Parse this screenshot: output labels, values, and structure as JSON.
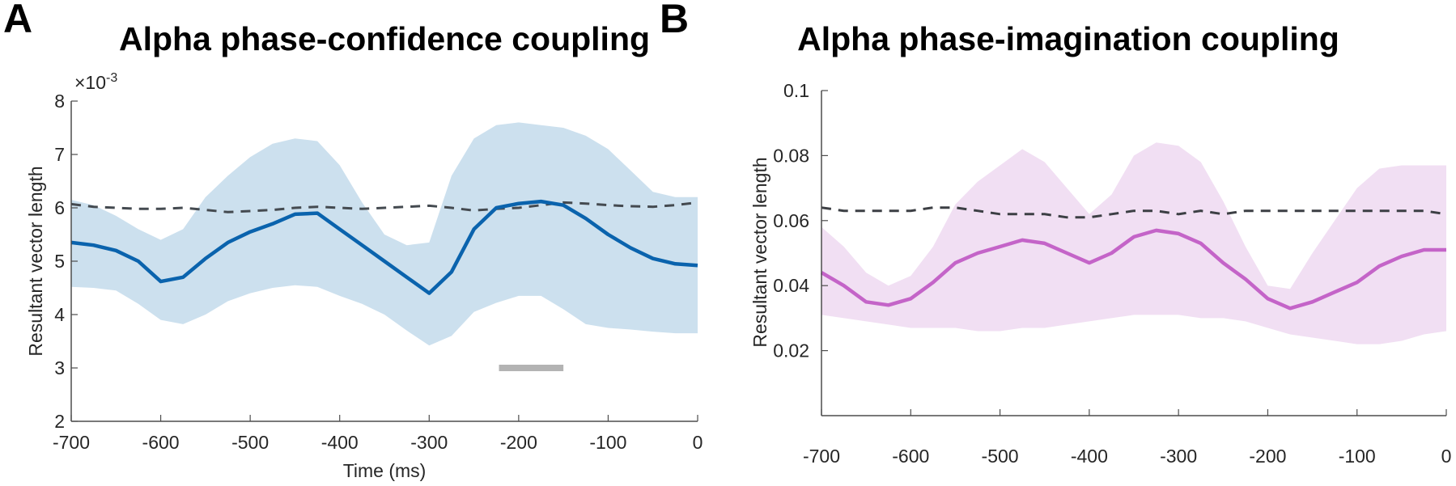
{
  "chart_data": [
    {
      "panel": "A",
      "type": "line",
      "title": "Alpha phase-confidence coupling",
      "xlabel": "Time (ms)",
      "ylabel": "Resultant vector length",
      "y_exponent_label": "×10",
      "y_exponent_power": "-3",
      "xlim": [
        -700,
        0
      ],
      "ylim": [
        2,
        8
      ],
      "xticks": [
        -700,
        -600,
        -500,
        -400,
        -300,
        -200,
        -100,
        0
      ],
      "xtick_labels": [
        "-700",
        "-600",
        "-500",
        "-400",
        "-300",
        "-200",
        "-100",
        "0"
      ],
      "yticks": [
        2,
        3,
        4,
        5,
        6,
        7,
        8
      ],
      "ytick_labels": [
        "2",
        "3",
        "4",
        "5",
        "6",
        "7",
        "8"
      ],
      "grid": false,
      "colors": {
        "mean": "#0a63ad",
        "band": "#cce0ee",
        "baseline": "#444a50",
        "significance": "#b3b3b3"
      },
      "x": [
        -700,
        -675,
        -650,
        -625,
        -600,
        -575,
        -550,
        -525,
        -500,
        -475,
        -450,
        -425,
        -400,
        -375,
        -350,
        -325,
        -300,
        -275,
        -250,
        -225,
        -200,
        -175,
        -150,
        -125,
        -100,
        -75,
        -50,
        -25,
        0
      ],
      "series": [
        {
          "name": "mean",
          "style": "solid",
          "values": [
            5.35,
            5.3,
            5.2,
            5.0,
            4.62,
            4.7,
            5.05,
            5.35,
            5.55,
            5.7,
            5.88,
            5.9,
            5.6,
            5.3,
            5.0,
            4.7,
            4.4,
            4.8,
            5.6,
            6.0,
            6.08,
            6.12,
            6.05,
            5.8,
            5.5,
            5.25,
            5.05,
            4.95,
            4.92
          ]
        },
        {
          "name": "upper",
          "style": "band",
          "values": [
            6.15,
            6.05,
            5.85,
            5.6,
            5.4,
            5.6,
            6.2,
            6.6,
            6.95,
            7.2,
            7.3,
            7.25,
            6.8,
            6.1,
            5.5,
            5.3,
            5.35,
            6.6,
            7.3,
            7.55,
            7.6,
            7.55,
            7.5,
            7.35,
            7.1,
            6.7,
            6.3,
            6.2,
            6.2
          ]
        },
        {
          "name": "lower",
          "style": "band",
          "values": [
            4.52,
            4.5,
            4.45,
            4.2,
            3.9,
            3.82,
            4.0,
            4.25,
            4.4,
            4.5,
            4.55,
            4.52,
            4.35,
            4.2,
            4.0,
            3.7,
            3.42,
            3.6,
            4.05,
            4.22,
            4.35,
            4.35,
            4.1,
            3.82,
            3.75,
            3.72,
            3.68,
            3.65,
            3.65
          ]
        },
        {
          "name": "baseline",
          "style": "dashed",
          "values": [
            6.07,
            6.02,
            6.0,
            5.98,
            5.98,
            6.0,
            5.96,
            5.92,
            5.94,
            5.96,
            6.0,
            6.02,
            6.0,
            5.98,
            6.0,
            6.02,
            6.04,
            6.0,
            5.95,
            5.98,
            6.0,
            6.05,
            6.1,
            6.08,
            6.05,
            6.03,
            6.02,
            6.05,
            6.1
          ]
        }
      ],
      "significance_bar": {
        "x_start": -222,
        "x_end": -150,
        "y": 3.0
      }
    },
    {
      "panel": "B",
      "type": "line",
      "title": "Alpha phase-imagination coupling",
      "xlabel": "",
      "ylabel": "Resultant vector length",
      "xlim": [
        -700,
        0
      ],
      "ylim": [
        0,
        0.1
      ],
      "xticks": [
        -700,
        -600,
        -500,
        -400,
        -300,
        -200,
        -100,
        0
      ],
      "xtick_labels": [
        "-700",
        "-600",
        "-500",
        "-400",
        "-300",
        "-200",
        "-100",
        "0"
      ],
      "yticks": [
        0.02,
        0.04,
        0.06,
        0.08,
        0.1
      ],
      "ytick_labels": [
        "0.02",
        "0.04",
        "0.06",
        "0.08",
        "0.1"
      ],
      "grid": false,
      "colors": {
        "mean": "#c464c8",
        "band": "#f1dff3",
        "baseline": "#3c3f44"
      },
      "x": [
        -700,
        -675,
        -650,
        -625,
        -600,
        -575,
        -550,
        -525,
        -500,
        -475,
        -450,
        -425,
        -400,
        -375,
        -350,
        -325,
        -300,
        -275,
        -250,
        -225,
        -200,
        -175,
        -150,
        -125,
        -100,
        -75,
        -50,
        -25,
        0
      ],
      "series": [
        {
          "name": "mean",
          "style": "solid",
          "values": [
            0.044,
            0.04,
            0.035,
            0.034,
            0.036,
            0.041,
            0.047,
            0.05,
            0.052,
            0.054,
            0.053,
            0.05,
            0.047,
            0.05,
            0.055,
            0.057,
            0.056,
            0.053,
            0.047,
            0.042,
            0.036,
            0.033,
            0.035,
            0.038,
            0.041,
            0.046,
            0.049,
            0.051,
            0.051
          ]
        },
        {
          "name": "upper",
          "style": "band",
          "values": [
            0.058,
            0.052,
            0.044,
            0.04,
            0.043,
            0.052,
            0.065,
            0.072,
            0.077,
            0.082,
            0.078,
            0.07,
            0.062,
            0.068,
            0.08,
            0.084,
            0.083,
            0.078,
            0.066,
            0.052,
            0.04,
            0.039,
            0.05,
            0.06,
            0.07,
            0.076,
            0.077,
            0.077,
            0.077
          ]
        },
        {
          "name": "lower",
          "style": "band",
          "values": [
            0.031,
            0.03,
            0.029,
            0.028,
            0.027,
            0.027,
            0.027,
            0.026,
            0.026,
            0.027,
            0.027,
            0.028,
            0.029,
            0.03,
            0.031,
            0.031,
            0.031,
            0.03,
            0.03,
            0.029,
            0.027,
            0.025,
            0.024,
            0.023,
            0.022,
            0.022,
            0.023,
            0.025,
            0.026
          ]
        },
        {
          "name": "baseline",
          "style": "dashed",
          "values": [
            0.064,
            0.063,
            0.063,
            0.063,
            0.063,
            0.064,
            0.064,
            0.063,
            0.062,
            0.062,
            0.062,
            0.061,
            0.061,
            0.062,
            0.063,
            0.063,
            0.062,
            0.063,
            0.062,
            0.063,
            0.063,
            0.063,
            0.063,
            0.063,
            0.063,
            0.063,
            0.063,
            0.063,
            0.062
          ]
        }
      ]
    }
  ]
}
